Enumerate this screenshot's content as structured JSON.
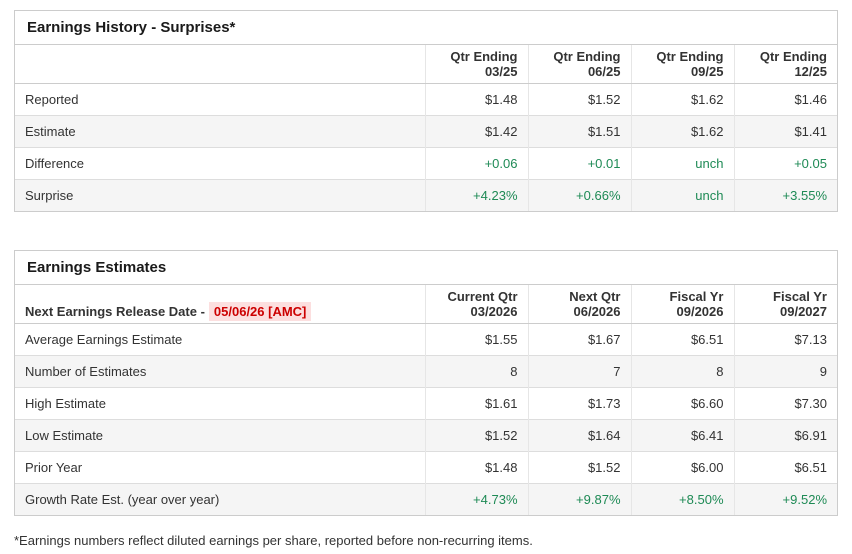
{
  "colors": {
    "positive_green": "#1e8a55",
    "release_date_red": "#cc0000",
    "release_date_bg": "#fcdfdf",
    "row_stripe": "#f5f5f5",
    "table_border": "#cccccc"
  },
  "surprises": {
    "title": "Earnings History - Surprises*",
    "columns": [
      "Qtr Ending\n03/25",
      "Qtr Ending\n06/25",
      "Qtr Ending\n09/25",
      "Qtr Ending\n12/25"
    ],
    "rows": [
      {
        "label": "Reported",
        "values": [
          "$1.48",
          "$1.52",
          "$1.62",
          "$1.46"
        ]
      },
      {
        "label": "Estimate",
        "values": [
          "$1.42",
          "$1.51",
          "$1.62",
          "$1.41"
        ]
      },
      {
        "label": "Difference",
        "values": [
          "+0.06",
          "+0.01",
          "unch",
          "+0.05"
        ]
      },
      {
        "label": "Surprise",
        "values": [
          "+4.23%",
          "+0.66%",
          "unch",
          "+3.55%"
        ]
      }
    ]
  },
  "estimates": {
    "title": "Earnings Estimates",
    "release_date_label": "Next Earnings Release Date -",
    "release_date": "05/06/26 [AMC]",
    "columns": [
      "Current Qtr\n03/2026",
      "Next Qtr\n06/2026",
      "Fiscal Yr\n09/2026",
      "Fiscal Yr\n09/2027"
    ],
    "rows": [
      {
        "label": "Average Earnings Estimate",
        "values": [
          "$1.55",
          "$1.67",
          "$6.51",
          "$7.13"
        ]
      },
      {
        "label": "Number of Estimates",
        "values": [
          "8",
          "7",
          "8",
          "9"
        ]
      },
      {
        "label": "High Estimate",
        "values": [
          "$1.61",
          "$1.73",
          "$6.60",
          "$7.30"
        ]
      },
      {
        "label": "Low Estimate",
        "values": [
          "$1.52",
          "$1.64",
          "$6.41",
          "$6.91"
        ]
      },
      {
        "label": "Prior Year",
        "values": [
          "$1.48",
          "$1.52",
          "$6.00",
          "$6.51"
        ]
      },
      {
        "label": "Growth Rate Est. (year over year)",
        "values": [
          "+4.73%",
          "+9.87%",
          "+8.50%",
          "+9.52%"
        ]
      }
    ]
  },
  "footnote": "*Earnings numbers reflect diluted earnings per share, reported before non-recurring items."
}
